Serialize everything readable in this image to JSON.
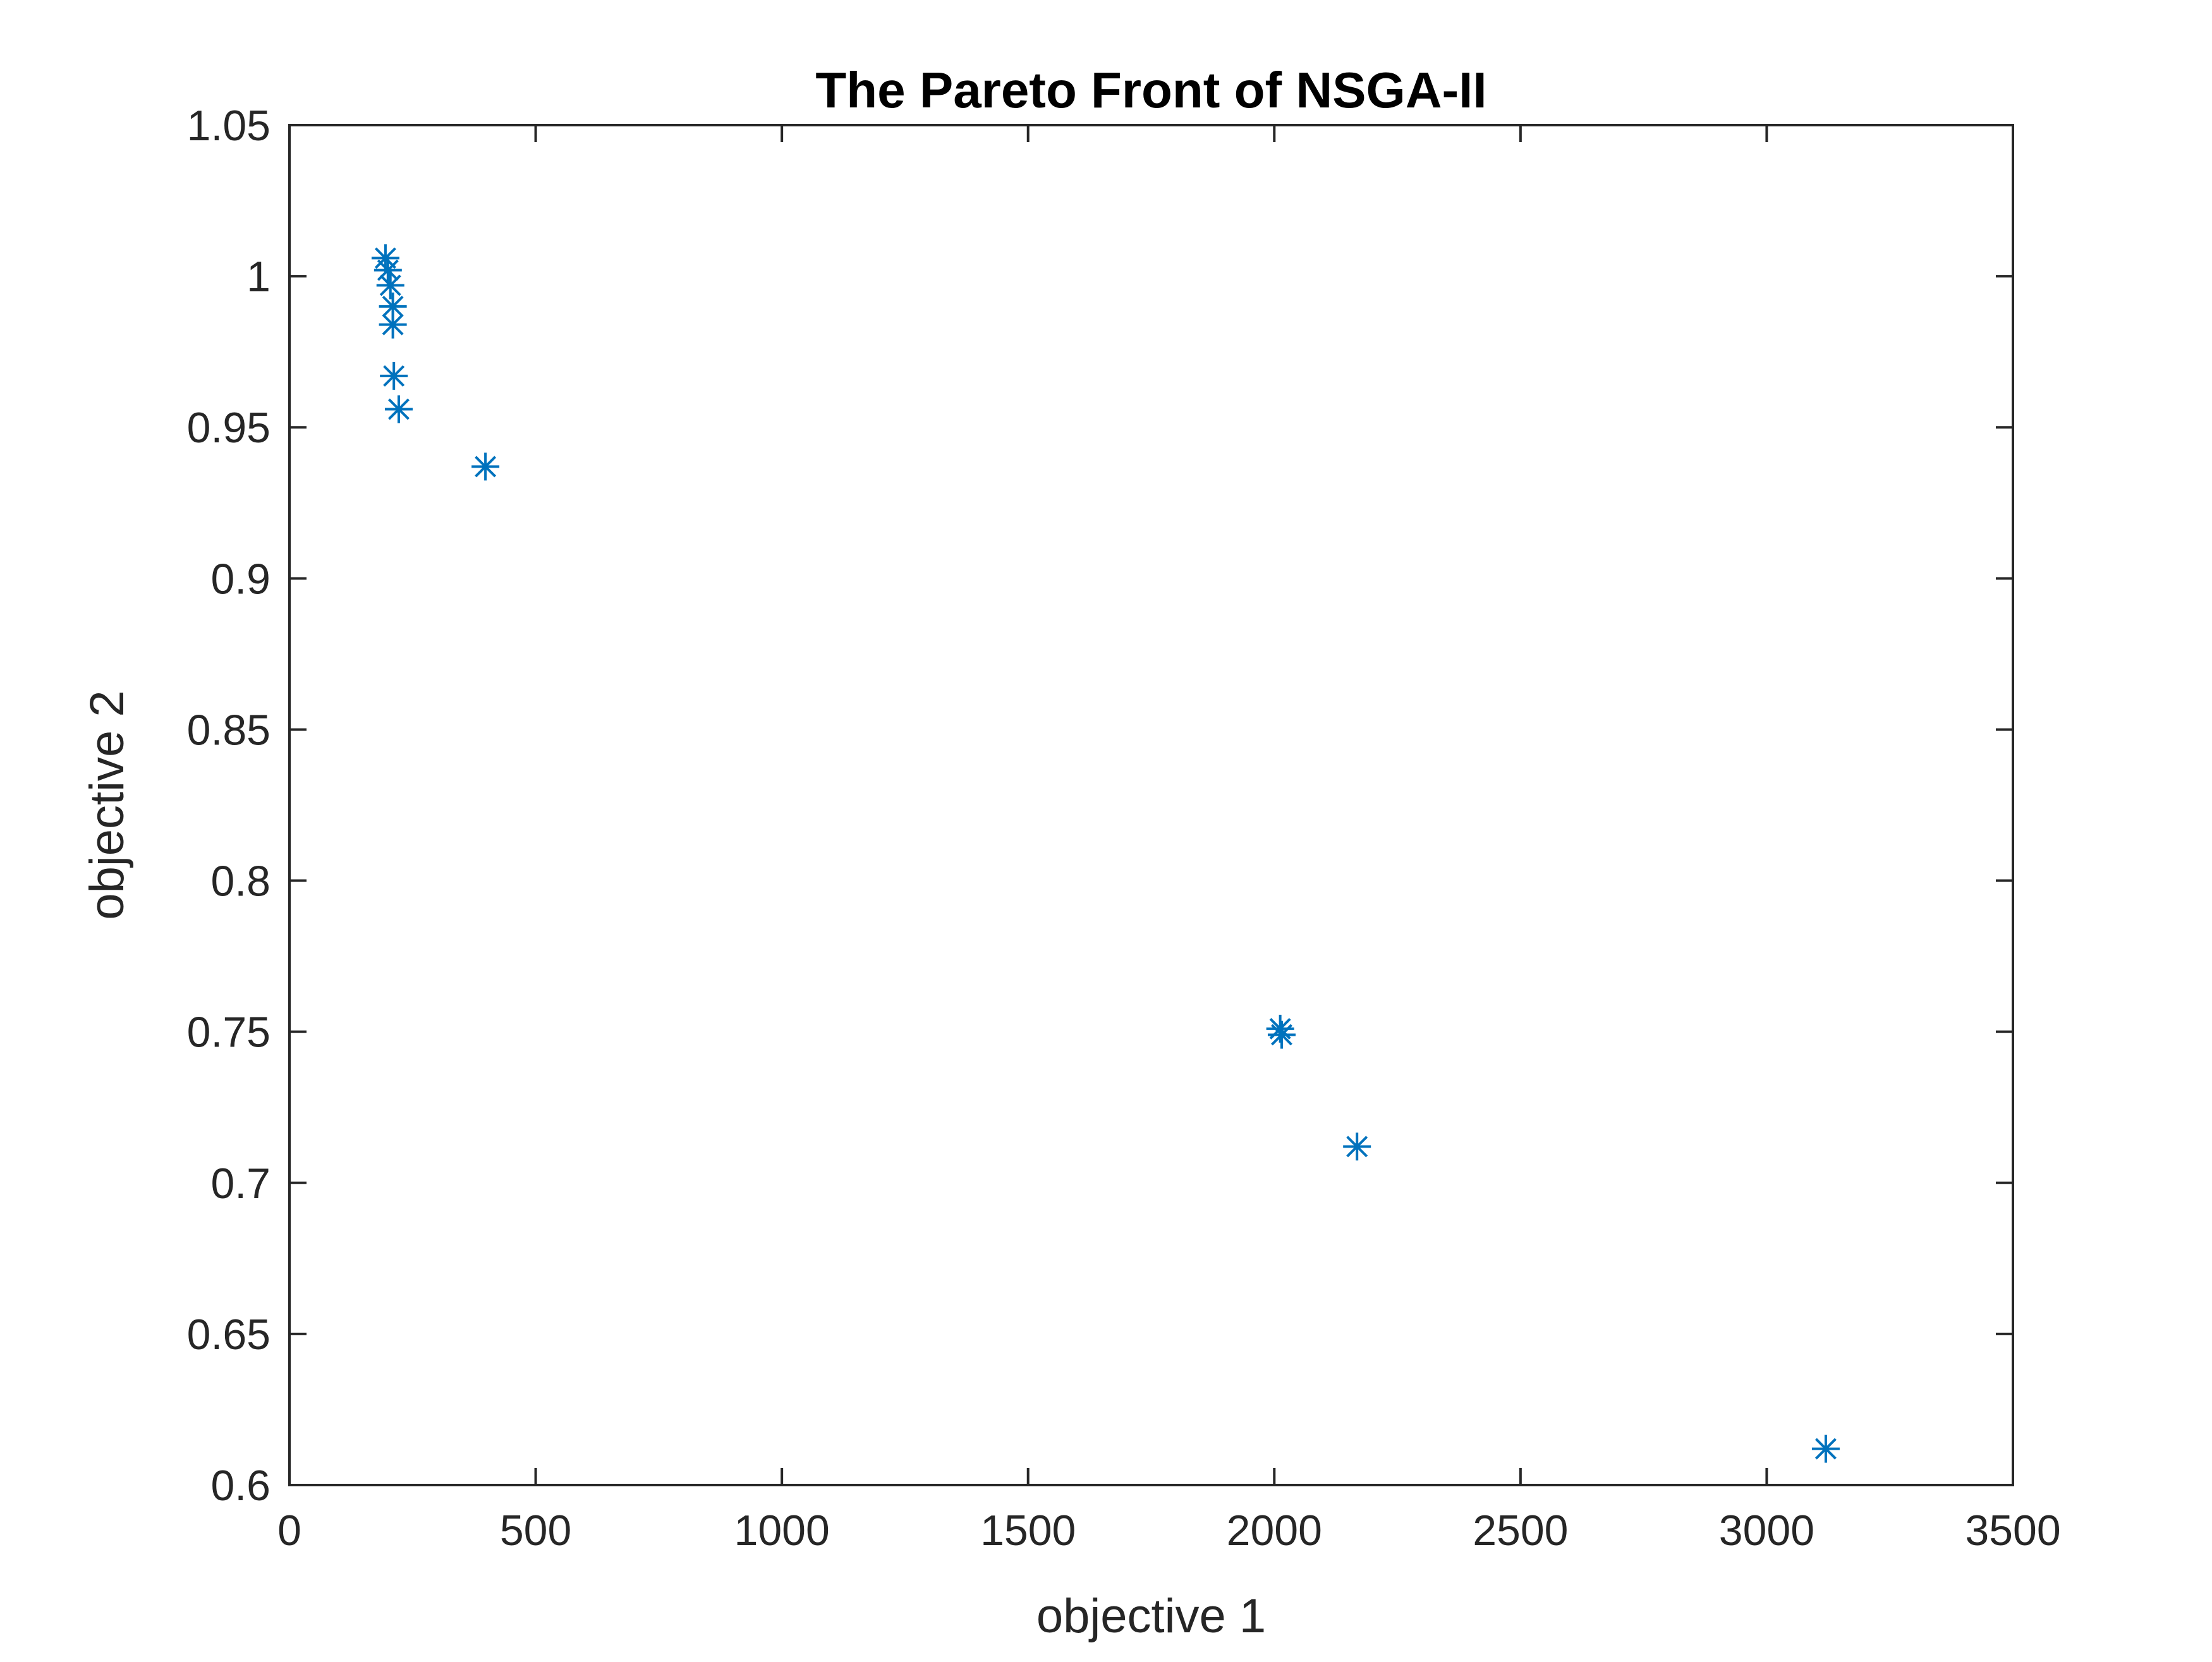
{
  "chart_data": {
    "type": "scatter",
    "title": "The Pareto Front of NSGA-II",
    "xlabel": "objective 1",
    "ylabel": "objective 2",
    "xlim": [
      0,
      3500
    ],
    "ylim": [
      0.6,
      1.05
    ],
    "xticks": [
      0,
      500,
      1000,
      1500,
      2000,
      2500,
      3000,
      3500
    ],
    "yticks": [
      0.6,
      0.65,
      0.7,
      0.75,
      0.8,
      0.85,
      0.9,
      0.95,
      1,
      1.05
    ],
    "xtick_labels": [
      "0",
      "500",
      "1000",
      "1500",
      "2000",
      "2500",
      "3000",
      "3500"
    ],
    "ytick_labels": [
      "0.6",
      "0.65",
      "0.7",
      "0.75",
      "0.8",
      "0.85",
      "0.9",
      "0.95",
      "1",
      "1.05"
    ],
    "marker": "asterisk",
    "grid": false,
    "box": true,
    "series": [
      {
        "color": "#0072BD",
        "points": [
          {
            "x": 195,
            "y": 1.006
          },
          {
            "x": 200,
            "y": 1.002
          },
          {
            "x": 205,
            "y": 0.997
          },
          {
            "x": 210,
            "y": 0.99
          },
          {
            "x": 210,
            "y": 0.984
          },
          {
            "x": 212,
            "y": 0.967
          },
          {
            "x": 222,
            "y": 0.956
          },
          {
            "x": 398,
            "y": 0.937
          },
          {
            "x": 2012,
            "y": 0.751
          },
          {
            "x": 2015,
            "y": 0.749
          },
          {
            "x": 2168,
            "y": 0.712
          },
          {
            "x": 3120,
            "y": 0.612
          }
        ]
      }
    ]
  }
}
